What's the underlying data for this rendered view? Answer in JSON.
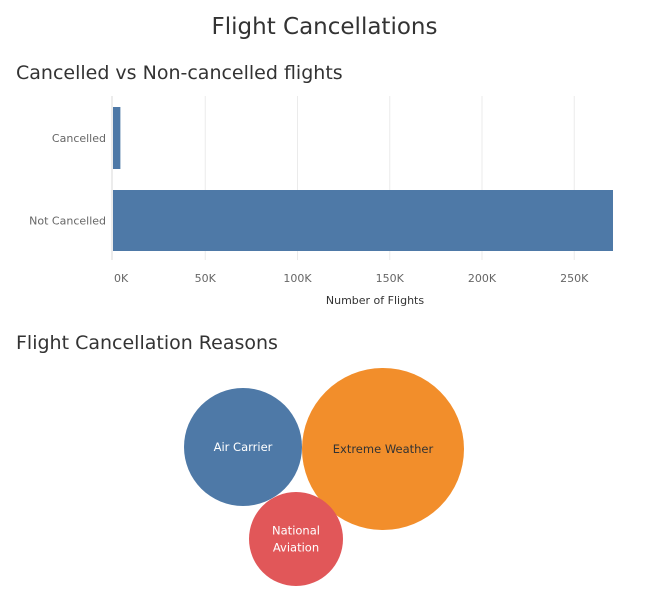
{
  "dashboard": {
    "title": "Flight Cancellations"
  },
  "colors": {
    "bar": "#4e79a7",
    "grid": "#ebebeb",
    "axis": "#d9d9d9"
  },
  "chart_data": [
    {
      "type": "bar",
      "orientation": "horizontal",
      "title": "Cancelled vs Non-cancelled flights",
      "categories": [
        "Cancelled",
        "Not Cancelled"
      ],
      "values": [
        4000,
        271000
      ],
      "xlabel": "Number of Flights",
      "ylabel": "",
      "xlim": [
        0,
        280000
      ],
      "xticks": [
        0,
        50000,
        100000,
        150000,
        200000,
        250000
      ],
      "xtick_labels": [
        "0K",
        "50K",
        "100K",
        "150K",
        "200K",
        "250K"
      ],
      "grid": true,
      "legend": false
    },
    {
      "type": "bubble",
      "title": "Flight Cancellation Reasons",
      "categories": [
        "Air Carrier",
        "Extreme Weather",
        "National Aviation"
      ],
      "values": [
        1100,
        2200,
        700
      ],
      "colors": [
        "#4e79a7",
        "#f28e2b",
        "#e15759"
      ],
      "label_colors": [
        "#ffffff",
        "#333333",
        "#ffffff"
      ],
      "labels": [
        [
          "Air Carrier"
        ],
        [
          "Extreme Weather"
        ],
        [
          "National",
          "Aviation"
        ]
      ],
      "legend": false
    }
  ]
}
